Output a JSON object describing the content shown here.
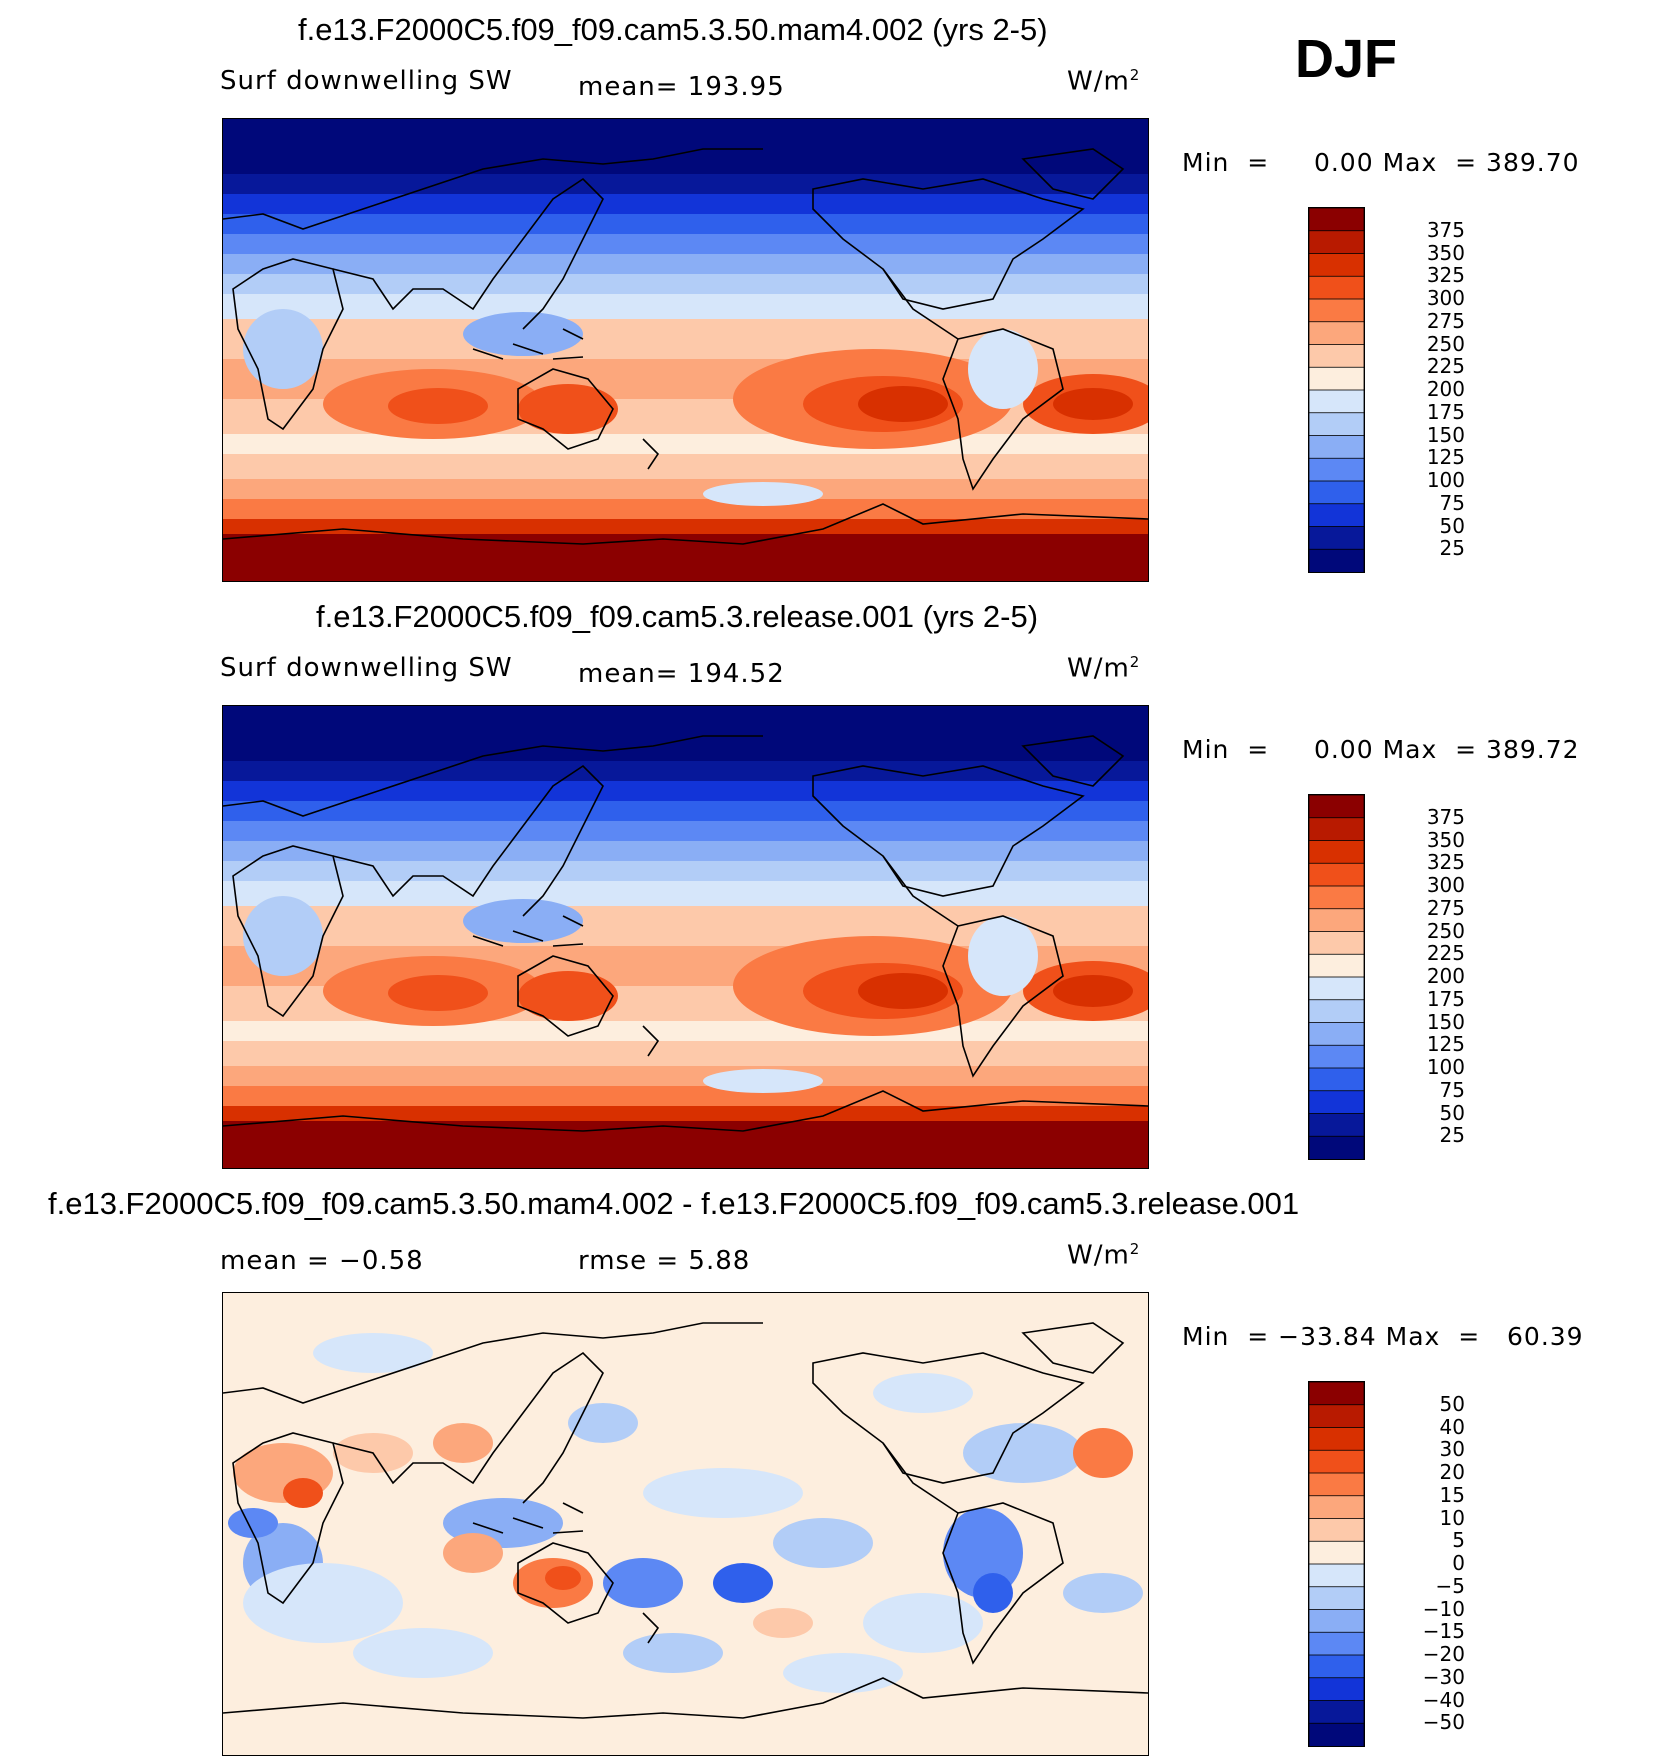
{
  "season": "DJF",
  "chart_data": [
    {
      "type": "heatmap",
      "title": "f.e13.F2000C5.f09_f09.cam5.3.50.mam4.002 (yrs 2-5)",
      "variable": "Surf downwelling SW",
      "stat_text": "mean=  193.95",
      "units": "W/m",
      "units_exp": "2",
      "min_label": "Min  =",
      "min_value": "0.00",
      "max_label": "Max  =",
      "max_value": "389.70",
      "levels": [
        "375",
        "350",
        "325",
        "300",
        "275",
        "250",
        "225",
        "200",
        "175",
        "150",
        "125",
        "100",
        "75",
        "50",
        "25"
      ],
      "colors": [
        "#8b0000",
        "#b81a00",
        "#d83000",
        "#f0501a",
        "#fa7a44",
        "#fca77c",
        "#fdc9aa",
        "#fdeede",
        "#d6e6fa",
        "#b2cdf7",
        "#8aaef5",
        "#5c88f4",
        "#2f60ec",
        "#1234d8",
        "#07189a",
        "#00087a"
      ]
    },
    {
      "type": "heatmap",
      "title": "f.e13.F2000C5.f09_f09.cam5.3.release.001 (yrs 2-5)",
      "variable": "Surf downwelling SW",
      "stat_text": "mean=  194.52",
      "units": "W/m",
      "units_exp": "2",
      "min_label": "Min  =",
      "min_value": "0.00",
      "max_label": "Max  =",
      "max_value": "389.72",
      "levels": [
        "375",
        "350",
        "325",
        "300",
        "275",
        "250",
        "225",
        "200",
        "175",
        "150",
        "125",
        "100",
        "75",
        "50",
        "25"
      ],
      "colors": [
        "#8b0000",
        "#b81a00",
        "#d83000",
        "#f0501a",
        "#fa7a44",
        "#fca77c",
        "#fdc9aa",
        "#fdeede",
        "#d6e6fa",
        "#b2cdf7",
        "#8aaef5",
        "#5c88f4",
        "#2f60ec",
        "#1234d8",
        "#07189a",
        "#00087a"
      ]
    },
    {
      "type": "heatmap",
      "title": "f.e13.F2000C5.f09_f09.cam5.3.50.mam4.002 - f.e13.F2000C5.f09_f09.cam5.3.release.001",
      "stat_text": "mean  =   −0.58",
      "stat_text_2": "rmse  =     5.88",
      "units": "W/m",
      "units_exp": "2",
      "min_label": "Min  =",
      "min_value": "−33.84",
      "max_label": "Max  =",
      "max_value": "60.39",
      "levels": [
        "50",
        "40",
        "30",
        "20",
        "15",
        "10",
        "5",
        "0",
        "−5",
        "−10",
        "−15",
        "−20",
        "−30",
        "−40",
        "−50"
      ],
      "colors": [
        "#8b0000",
        "#b81a00",
        "#d83000",
        "#f0501a",
        "#fa7a44",
        "#fca77c",
        "#fdc9aa",
        "#fdeede",
        "#d6e6fa",
        "#b2cdf7",
        "#8aaef5",
        "#5c88f4",
        "#2f60ec",
        "#1234d8",
        "#07189a",
        "#00087a"
      ]
    }
  ]
}
